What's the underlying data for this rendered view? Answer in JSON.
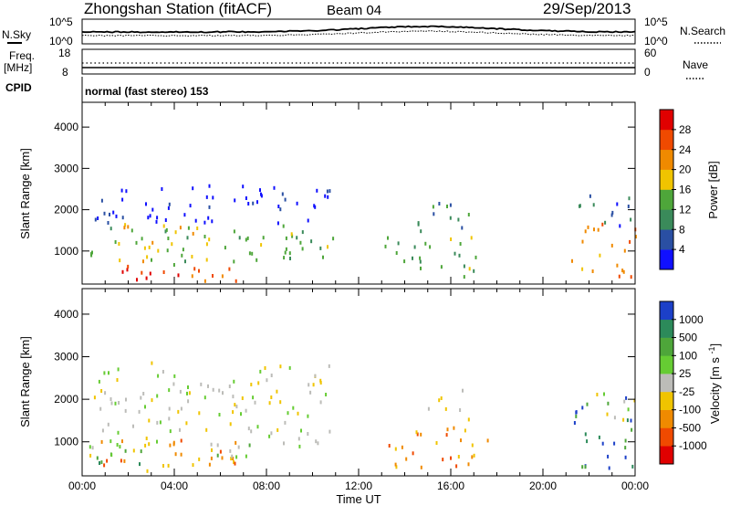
{
  "header": {
    "station": "Zhongshan Station (fitACF)",
    "beam": "Beam 04",
    "date": "29/Sep/2013"
  },
  "top_panels": {
    "nsky_label": "N.Sky",
    "nsky_ticks": [
      "10^5",
      "10^0"
    ],
    "nsearch_label": "N.Search",
    "nsearch_ticks": [
      "10^5",
      "10^0"
    ],
    "freq_label_1": "Freq.",
    "freq_label_2": "[MHz]",
    "freq_ticks": [
      "18",
      "8"
    ],
    "nave_label": "Nave",
    "nave_ticks": [
      "60",
      "0"
    ],
    "cpid_label": "CPID",
    "cpid_value": "normal (fast stereo) 153"
  },
  "chart_data": [
    {
      "type": "heatmap",
      "name": "power",
      "ylabel": "Slant Range [km]",
      "yticks": [
        "1000",
        "2000",
        "3000",
        "4000"
      ],
      "ylim": [
        200,
        4600
      ],
      "colorbar_label": "Power [dB]",
      "colorbar_ticks": [
        "4",
        "8",
        "12",
        "16",
        "20",
        "24",
        "28"
      ],
      "colors": [
        "#1010ff",
        "#2a4fa3",
        "#3a8a5a",
        "#4ea63a",
        "#f0c400",
        "#f08a00",
        "#f04a00",
        "#e00000"
      ],
      "blobs": [
        {
          "x0": 0.3,
          "x1": 10.9,
          "y0": 700,
          "y1": 1650,
          "v": 3
        },
        {
          "x0": 0.3,
          "x1": 6.8,
          "y0": 300,
          "y1": 800,
          "v": 6
        },
        {
          "x0": 0.5,
          "x1": 5.0,
          "y0": 1200,
          "y1": 1700,
          "v": 4
        },
        {
          "x0": 0.5,
          "x1": 10.8,
          "y0": 1700,
          "y1": 2700,
          "v": 0
        },
        {
          "x0": 13.1,
          "x1": 17.2,
          "y0": 400,
          "y1": 1400,
          "v": 3
        },
        {
          "x0": 14.5,
          "x1": 16.8,
          "y0": 1400,
          "y1": 2300,
          "v": 2
        },
        {
          "x0": 21.2,
          "x1": 24.0,
          "y0": 400,
          "y1": 1700,
          "v": 5
        },
        {
          "x0": 21.2,
          "x1": 24.0,
          "y0": 1600,
          "y1": 2400,
          "v": 1
        }
      ]
    },
    {
      "type": "heatmap",
      "name": "velocity",
      "ylabel": "Slant Range [km]",
      "yticks": [
        "1000",
        "2000",
        "3000",
        "4000"
      ],
      "ylim": [
        200,
        4600
      ],
      "xlabel": "Time UT",
      "xticks": [
        "00:00",
        "04:00",
        "08:00",
        "12:00",
        "16:00",
        "20:00",
        "00:00"
      ],
      "xlim": [
        0,
        24
      ],
      "colorbar_label": "Velocity [m s^-1]",
      "colorbar_ticks": [
        "1000",
        "500",
        "100",
        "25",
        "-25",
        "-100",
        "-500",
        "-1000"
      ],
      "colors": [
        "#1c40c8",
        "#2c8a5a",
        "#4ea63a",
        "#66cc33",
        "#bcbcb8",
        "#f0c400",
        "#f08a00",
        "#f04a00",
        "#e00000"
      ],
      "blobs": [
        {
          "x0": 0.3,
          "x1": 11.0,
          "y0": 900,
          "y1": 2900,
          "v": 4
        },
        {
          "x0": 0.3,
          "x1": 7.0,
          "y0": 300,
          "y1": 1100,
          "v": 6
        },
        {
          "x0": 0.5,
          "x1": 3.0,
          "y0": 300,
          "y1": 900,
          "v": 2
        },
        {
          "x0": 5.5,
          "x1": 7.5,
          "y0": 500,
          "y1": 1000,
          "v": 3
        },
        {
          "x0": 13.2,
          "x1": 17.8,
          "y0": 400,
          "y1": 1300,
          "v": 6
        },
        {
          "x0": 15.0,
          "x1": 16.8,
          "y0": 1300,
          "y1": 2300,
          "v": 5
        },
        {
          "x0": 21.3,
          "x1": 24.0,
          "y0": 400,
          "y1": 2100,
          "v": 1
        },
        {
          "x0": 22.0,
          "x1": 24.0,
          "y0": 1500,
          "y1": 2200,
          "v": 4
        }
      ]
    }
  ]
}
